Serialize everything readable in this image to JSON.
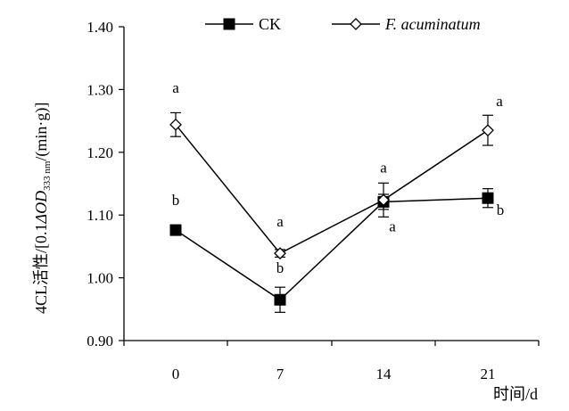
{
  "chart_data": {
    "type": "line",
    "x": [
      0,
      7,
      14,
      21
    ],
    "x_ticks": [
      "0",
      "7",
      "14",
      "21"
    ],
    "xlabel": "时间/d",
    "ylabel_parts": {
      "prefix": "4CL活性/[0.1",
      "delta": "Δ",
      "od": "OD",
      "sub": "333 nm",
      "suffix": "/(min·g)]"
    },
    "ylim": [
      0.9,
      1.4
    ],
    "y_ticks": [
      "0.90",
      "1.00",
      "1.10",
      "1.20",
      "1.30",
      "1.40"
    ],
    "legend_position": "top",
    "series": [
      {
        "name": "CK",
        "marker": "filled-square",
        "values": [
          1.076,
          0.965,
          1.121,
          1.127
        ],
        "errors": [
          0.008,
          0.02,
          0.012,
          0.015
        ],
        "significance": [
          "b",
          "b",
          "a",
          "b"
        ]
      },
      {
        "name": "F. acuminatum",
        "marker": "open-diamond",
        "values": [
          1.244,
          1.039,
          1.124,
          1.235
        ],
        "errors": [
          0.019,
          0.006,
          0.027,
          0.024
        ],
        "significance": [
          "a",
          "a",
          "a",
          "a"
        ]
      }
    ]
  }
}
